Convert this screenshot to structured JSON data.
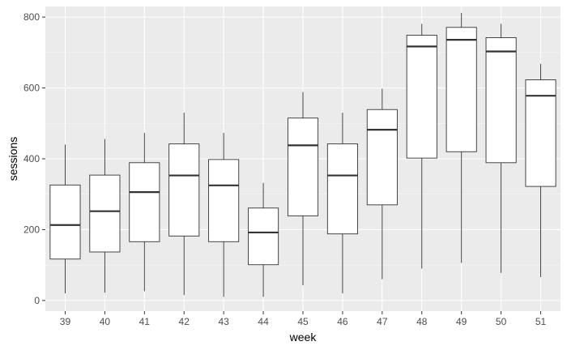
{
  "chart_data": {
    "type": "boxplot",
    "xlabel": "week",
    "ylabel": "sessions",
    "ylim": [
      -30,
      830
    ],
    "y_ticks": [
      0,
      200,
      400,
      600,
      800
    ],
    "grid": true,
    "categories": [
      "39",
      "40",
      "41",
      "42",
      "43",
      "44",
      "45",
      "46",
      "47",
      "48",
      "49",
      "50",
      "51"
    ],
    "boxes": [
      {
        "week": "39",
        "min": 20,
        "q1": 117,
        "median": 213,
        "q3": 326,
        "max": 440
      },
      {
        "week": "40",
        "min": 22,
        "q1": 137,
        "median": 252,
        "q3": 354,
        "max": 456
      },
      {
        "week": "41",
        "min": 26,
        "q1": 166,
        "median": 306,
        "q3": 389,
        "max": 473
      },
      {
        "week": "42",
        "min": 15,
        "q1": 182,
        "median": 353,
        "q3": 442,
        "max": 530
      },
      {
        "week": "43",
        "min": 10,
        "q1": 166,
        "median": 325,
        "q3": 398,
        "max": 473
      },
      {
        "week": "44",
        "min": 10,
        "q1": 101,
        "median": 192,
        "q3": 261,
        "max": 332
      },
      {
        "week": "45",
        "min": 43,
        "q1": 239,
        "median": 438,
        "q3": 515,
        "max": 589
      },
      {
        "week": "46",
        "min": 20,
        "q1": 188,
        "median": 353,
        "q3": 442,
        "max": 530
      },
      {
        "week": "47",
        "min": 60,
        "q1": 270,
        "median": 482,
        "q3": 539,
        "max": 598
      },
      {
        "week": "48",
        "min": 90,
        "q1": 402,
        "median": 717,
        "q3": 749,
        "max": 781
      },
      {
        "week": "49",
        "min": 106,
        "q1": 420,
        "median": 736,
        "q3": 771,
        "max": 812
      },
      {
        "week": "50",
        "min": 78,
        "q1": 389,
        "median": 703,
        "q3": 742,
        "max": 781
      },
      {
        "week": "51",
        "min": 66,
        "q1": 322,
        "median": 578,
        "q3": 623,
        "max": 668
      }
    ],
    "colors": {
      "panel_background": "#ebebeb",
      "grid_major": "#ffffff",
      "grid_minor": "#f5f5f5",
      "box_fill": "#ffffff",
      "box_stroke": "#333333",
      "tick_label": "#4d4d4d",
      "axis_title": "#000000"
    }
  }
}
